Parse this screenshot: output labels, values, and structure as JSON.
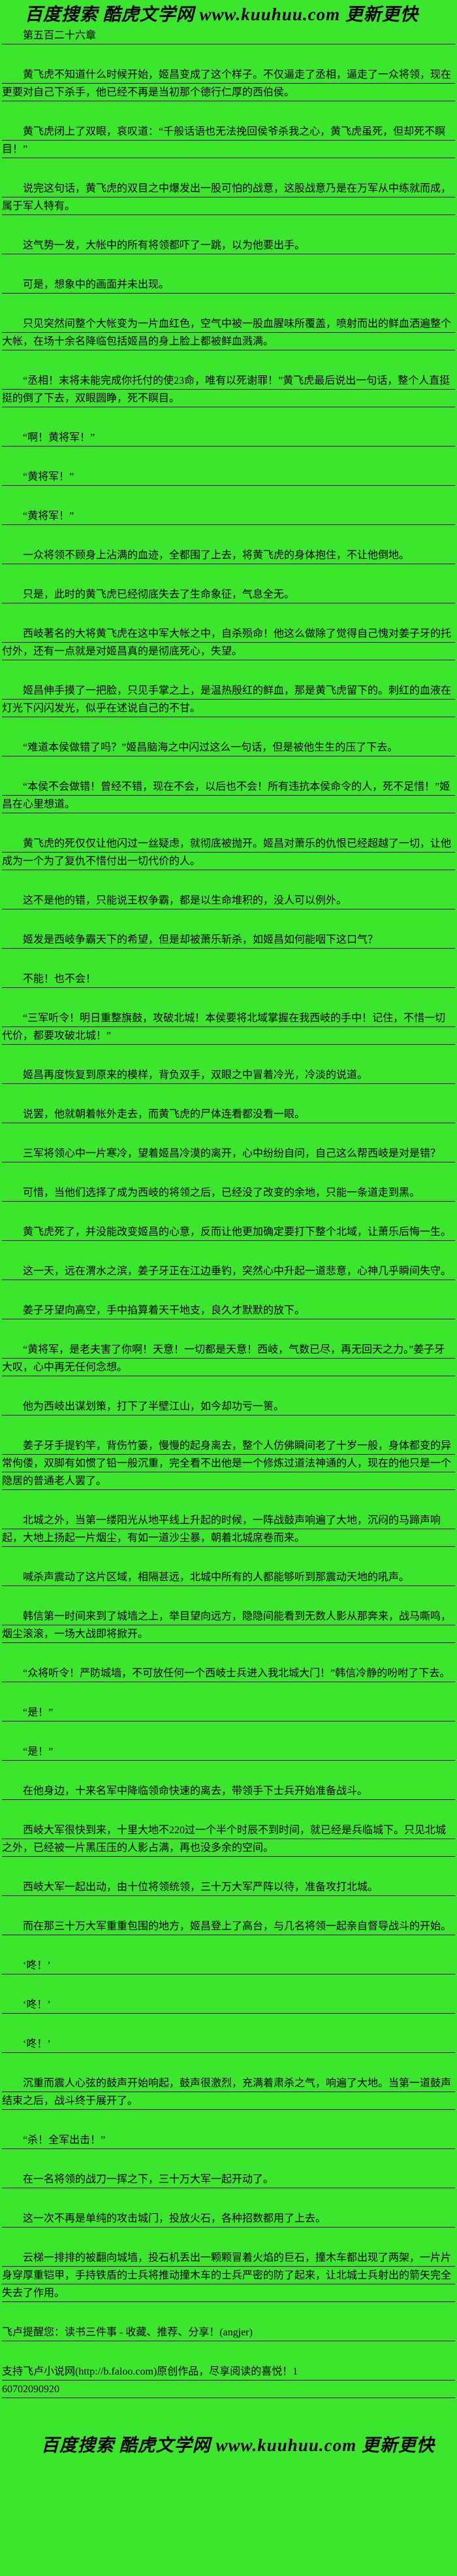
{
  "page": {
    "background_color": "#3CE62D",
    "text_color": "#000000",
    "rule_color": "#000000"
  },
  "banner": {
    "text": "百度搜索 酷虎文学网 www.kuuhuu.com 更新更快"
  },
  "chapter": {
    "title": "第五百二十六章"
  },
  "paragraphs": [
    "黄飞虎不知道什么时候开始，姬昌变成了这个样子。不仅逼走了丞相，逼走了一众将领，现在更要对自己下杀手，他已经不再是当初那个德行仁厚的西伯侯。",
    "黄飞虎闭上了双眼，哀叹道：“千般话语也无法挽回侯爷杀我之心，黄飞虎虽死，但却死不瞑目！”",
    "说完这句话，黄飞虎的双目之中爆发出一股可怕的战意，这股战意乃是在万军从中练就而成，属于军人特有。",
    "这气势一发，大帐中的所有将领都吓了一跳，以为他要出手。",
    "可是，想象中的画面并未出现。",
    "只见突然间整个大帐变为一片血红色，空气中被一股血腥味所覆盖，喷射而出的鲜血洒遍整个大帐，在场十余名降临包括姬昌的身上脸上都被鲜血溅满。",
    "“丞相！末将未能完成你托付的使23命，唯有以死谢罪！”黄飞虎最后说出一句话，整个人直挺挺的倒了下去，双眼圆睁，死不瞑目。",
    "“啊！黄将军！”",
    "“黄将军！”",
    "“黄将军！”",
    "一众将领不顾身上沾满的血迹，全都围了上去，将黄飞虎的身体抱住，不让他倒地。",
    "只是，此时的黄飞虎已经彻底失去了生命象征，气息全无。",
    "西岐著名的大将黄飞虎在这中军大帐之中，自杀殒命！他这么做除了觉得自己愧对姜子牙的托付外，还有一点就是对姬昌真的是彻底死心，失望。",
    "姬昌伸手摸了一把脸，只见手掌之上，是温热殷红的鲜血，那是黄飞虎留下的。刺红的血液在灯光下闪闪发光，似乎在述说自己的不甘。",
    "“难道本侯做错了吗？”姬昌脑海之中闪过这么一句话，但是被他生生的压了下去。",
    "“本侯不会做错！曾经不错，现在不会，以后也不会！所有违抗本侯命令的人，死不足惜！”姬昌在心里想道。",
    "黄飞虎的死仅仅让他闪过一丝疑虑，就彻底被抛开。姬昌对萧乐的仇恨已经超越了一切，让他成为一个为了复仇不惜付出一切代价的人。",
    "这不是他的错，只能说王权争霸，都是以生命堆积的，没人可以例外。",
    "姬发是西岐争霸天下的希望，但是却被萧乐斩杀，如姬昌如何能咽下这口气？",
    "不能！也不会！",
    "“三军听令！明日重整旗鼓，攻破北城！本侯要将北域掌握在我西岐的手中！记住，不惜一切代价，都要攻破北城！”",
    "姬昌再度恢复到原来的模样，背负双手，双眼之中冒着冷光，冷淡的说道。",
    "说罢，他就朝着帐外走去，而黄飞虎的尸体连看都没看一眼。",
    "三军将领心中一片寒冷，望着姬昌冷漠的离开，心中纷纷自问，自己这么帮西岐是对是错？",
    "可惜，当他们选择了成为西岐的将领之后，已经没了改变的余地，只能一条道走到黑。",
    "黄飞虎死了，并没能改变姬昌的心意，反而让他更加确定要打下整个北域，让萧乐后悔一生。",
    "这一天，远在渭水之滨，姜子牙正在江边垂钓，突然心中升起一道悲意，心神几乎瞬间失守。",
    "姜子牙望向高空，手中掐算着天干地支，良久才默默的放下。",
    "“黄将军，是老夫害了你啊！天意！一切都是天意！西岐，气数已尽，再无回天之力。”姜子牙大叹，心中再无任何念想。",
    "他为西岐出谋划策，打下了半壁江山，如今却功亏一篑。",
    "姜子牙手提钓竿，背伤竹篓，慢慢的起身离去，整个人仿佛瞬间老了十岁一般，身体都变的异常佝偻，双脚有如惯了铅一般沉重，完全看不出他是一个修炼过道法神通的人，现在的他只是一个隐居的普通老人罢了。",
    "北城之外，当第一缕阳光从地平线上升起的时候，一阵战鼓声响遍了大地，沉闷的马蹄声响起，大地上扬起一片烟尘，有如一道沙尘暴，朝着北城席卷而来。",
    "喊杀声震动了这片区域，相隔甚远，北城中所有的人都能够听到那震动天地的吼声。",
    "韩信第一时间来到了城墙之上，举目望向远方，隐隐间能看到无数人影从那奔来，战马嘶鸣，烟尘滚滚，一场大战即将掀开。",
    "“众将听令！严防城墙，不可放任何一个西岐士兵进入我北城大门！”韩信冷静的吩咐了下去。",
    "“是！”",
    "“是！”",
    "在他身边，十来名军中降临领命快速的离去，带领手下士兵开始准备战斗。",
    "西岐大军很快到来，十里大地不220过一个半个时辰不到时间，就已经是兵临城下。只见北城之外，已经被一片黑压压的人影占满，再也没多余的空间。",
    "西岐大军一起出动，由十位将领统领，三十万大军严阵以待，准备攻打北城。",
    "而在那三十万大军重重包围的地方，姬昌登上了高台，与几名将领一起亲自督导战斗的开始。",
    "‘咚！’",
    "‘咚！’",
    "‘咚！’",
    "沉重而震人心弦的鼓声开始响起，鼓声很激烈，充满着肃杀之气，响遍了大地。当第一道鼓声结束之后，战斗终于展开了。",
    "“杀！全军出击！”",
    "在一名将领的战刀一挥之下，三十万大军一起开动了。",
    "这一次不再是单纯的攻击城门，投放火石，各种招数都用了上去。",
    "云梯一排排的被翻向城墙，投石机丢出一颗颗冒着火焰的巨石，撞木车都出现了两架，一片片身穿厚重铠甲，手持铁盾的士兵将推动撞木车的士兵严密的防了起来，让北城士兵射出的箭矢完全失去了作用。"
  ],
  "footer": {
    "reminder": "飞卢提醒您：读书三件事 - 收藏、推荐、分享！(angjer)",
    "support_line1": "支持飞卢小说网(http://b.faloo.com)原创作品，尽享阅读的喜悦！1",
    "support_line2": "60702090920"
  }
}
